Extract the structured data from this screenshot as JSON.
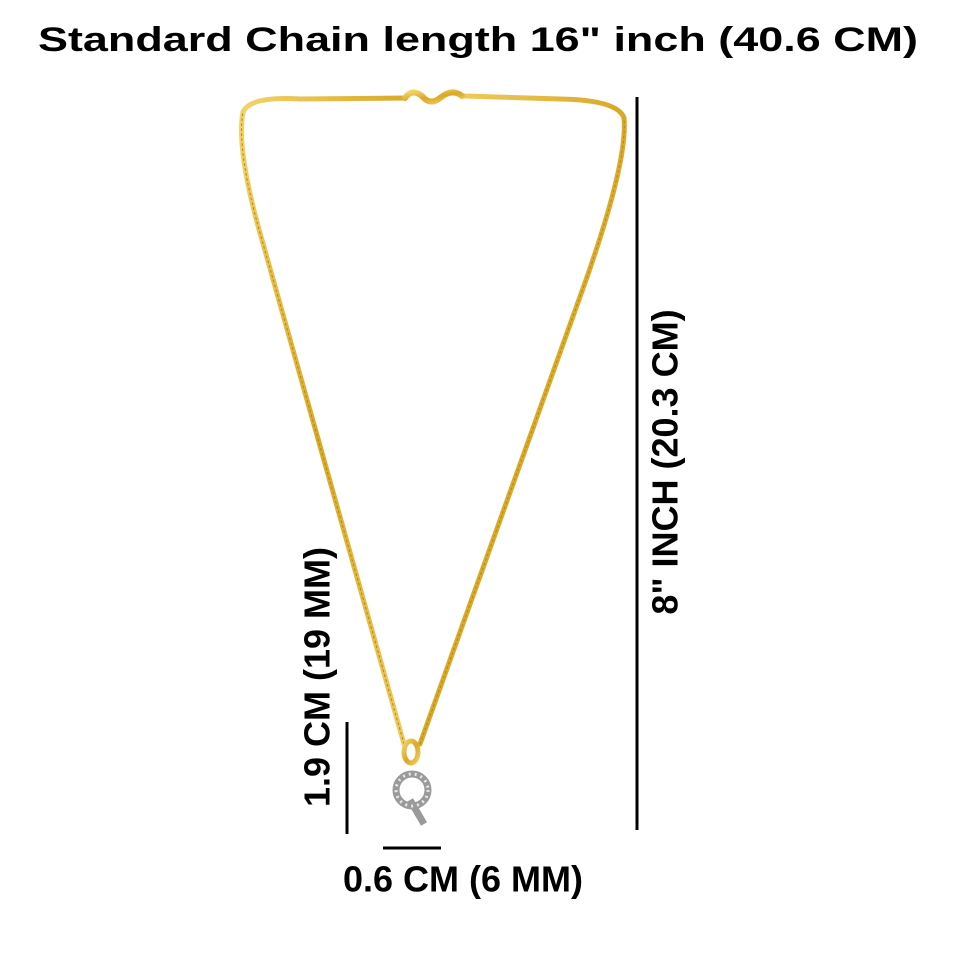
{
  "title": "Standard Chain length 16\" inch (40.6 CM)",
  "labels": {
    "chain_drop": "8\" INCH (20.3 CM)",
    "pendant_height": "1.9 CM (19 MM)",
    "pendant_width": "0.6 CM (6 MM)"
  }
}
